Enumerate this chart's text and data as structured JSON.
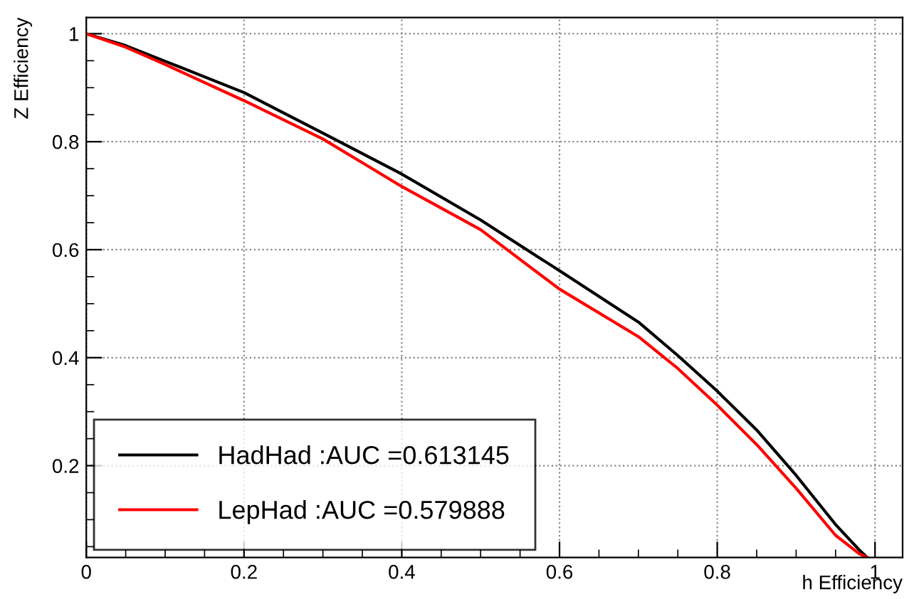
{
  "chart_data": {
    "type": "line",
    "xlabel": "h Efficiency",
    "ylabel": "Z Efficiency",
    "xlim": [
      0,
      1.035
    ],
    "ylim": [
      0.03,
      1.03
    ],
    "xticks": [
      0,
      0.2,
      0.4,
      0.6,
      0.8,
      1
    ],
    "yticks": [
      0.2,
      0.4,
      0.6,
      0.8,
      1
    ],
    "grid": true,
    "legend": "bottom left",
    "line_style": "solid",
    "marker": "none",
    "series": [
      {
        "name": "HadHad :AUC =0.613145",
        "color": "#000000",
        "x": [
          0,
          0.05,
          0.1,
          0.2,
          0.3,
          0.4,
          0.5,
          0.6,
          0.7,
          0.75,
          0.8,
          0.85,
          0.9,
          0.95,
          0.98,
          0.99
        ],
        "values": [
          1,
          0.978,
          0.949,
          0.891,
          0.816,
          0.74,
          0.655,
          0.561,
          0.466,
          0.404,
          0.338,
          0.266,
          0.182,
          0.091,
          0.044,
          0.03
        ]
      },
      {
        "name": "LepHad :AUC =0.579888",
        "color": "#ff0000",
        "x": [
          0,
          0.05,
          0.1,
          0.2,
          0.3,
          0.4,
          0.5,
          0.6,
          0.7,
          0.75,
          0.8,
          0.85,
          0.9,
          0.95,
          0.98,
          0.99
        ],
        "values": [
          1,
          0.975,
          0.943,
          0.876,
          0.805,
          0.717,
          0.637,
          0.527,
          0.439,
          0.38,
          0.312,
          0.239,
          0.158,
          0.071,
          0.037,
          0.03
        ]
      }
    ]
  }
}
